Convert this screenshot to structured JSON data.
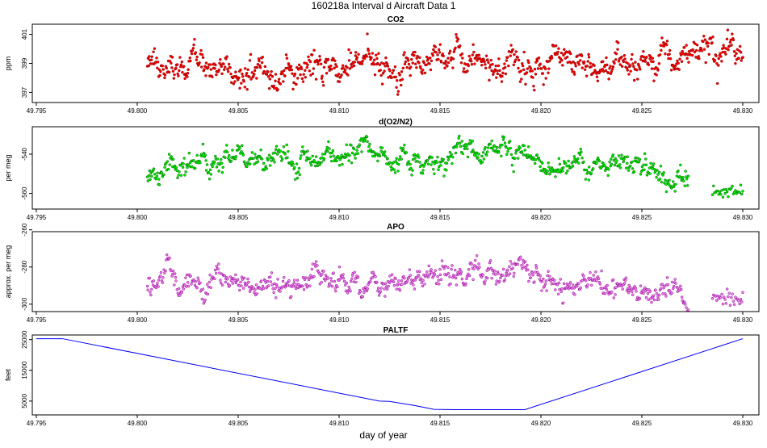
{
  "figure": {
    "title": "160218a   Interval d Aircraft Data 1",
    "xlabel": "day of year"
  },
  "chart_data": [
    {
      "type": "scatter",
      "title": "CO2",
      "ylabel": "ppm",
      "xlim": [
        49.7948,
        49.8308
      ],
      "ylim": [
        396.3,
        401.7
      ],
      "xticks": [
        49.795,
        49.8,
        49.805,
        49.81,
        49.815,
        49.82,
        49.825,
        49.83
      ],
      "xtick_labels": [
        "49.795",
        "49.800",
        "49.805",
        "49.810",
        "49.815",
        "49.820",
        "49.825",
        "49.830"
      ],
      "yticks": [
        397,
        399,
        401
      ],
      "ytick_labels": [
        "397",
        "399",
        "401"
      ],
      "color": "#ff0000",
      "edge_color": "#8b0000",
      "trend": {
        "x": [
          49.8005,
          49.802,
          49.805,
          49.81,
          49.815,
          49.82,
          49.823,
          49.825,
          49.827,
          49.829,
          49.83
        ],
        "y": [
          399.1,
          398.8,
          398.6,
          398.8,
          399.0,
          398.9,
          398.8,
          399.0,
          399.4,
          399.8,
          400.1
        ]
      },
      "x_range": [
        49.8005,
        49.83
      ],
      "noise": 0.55,
      "n_points": 900
    },
    {
      "type": "scatter",
      "title": "d(O2/N2)",
      "ylabel": "per meg",
      "xlim": [
        49.7948,
        49.8308
      ],
      "ylim": [
        -568,
        -526
      ],
      "xticks": [
        49.795,
        49.8,
        49.805,
        49.81,
        49.815,
        49.82,
        49.825,
        49.83
      ],
      "xtick_labels": [
        "49.795",
        "49.800",
        "49.805",
        "49.810",
        "49.815",
        "49.820",
        "49.825",
        "49.830"
      ],
      "yticks": [
        -540,
        -560
      ],
      "ytick_labels": [
        "-540",
        "-560"
      ],
      "color": "#00ee00",
      "edge_color": "#006400",
      "trend": {
        "x": [
          49.8005,
          49.801,
          49.803,
          49.805,
          49.81,
          49.814,
          49.8165,
          49.819,
          49.8205,
          49.822,
          49.825,
          49.826,
          49.827
        ],
        "y": [
          -555,
          -549,
          -544,
          -543,
          -541,
          -543,
          -539,
          -537,
          -545,
          -543,
          -545,
          -552,
          -553
        ]
      },
      "x_range": [
        49.8005,
        49.8273
      ],
      "gap_segment": {
        "x": [
          49.8285,
          49.83
        ],
        "y": [
          -559,
          -559.5
        ],
        "n_points": 30
      },
      "noise": 3.0,
      "n_points": 750
    },
    {
      "type": "scatter",
      "title": "APO",
      "ylabel": "approx. per meg",
      "xlim": [
        49.7948,
        49.8308
      ],
      "ylim": [
        -304,
        -261
      ],
      "xticks": [
        49.795,
        49.8,
        49.805,
        49.81,
        49.815,
        49.82,
        49.825,
        49.83
      ],
      "xtick_labels": [
        "49.795",
        "49.800",
        "49.805",
        "49.810",
        "49.815",
        "49.820",
        "49.825",
        "49.830"
      ],
      "yticks": [
        -260,
        -280,
        -300
      ],
      "ytick_labels": [
        "-260",
        "-280",
        "-300"
      ],
      "color": "#ee82ee",
      "edge_color": "#8b008b",
      "trend": {
        "x": [
          49.8005,
          49.803,
          49.806,
          49.81,
          49.812,
          49.815,
          49.8165,
          49.819,
          49.8205,
          49.823,
          49.8273
        ],
        "y": [
          -291,
          -288,
          -290,
          -288,
          -289,
          -284,
          -283,
          -281,
          -289,
          -290,
          -295
        ]
      },
      "x_range": [
        49.8005,
        49.8273
      ],
      "gap_segment": {
        "x": [
          49.8285,
          49.83
        ],
        "y": [
          -296,
          -298
        ],
        "n_points": 30
      },
      "noise": 3.4,
      "n_points": 750
    },
    {
      "type": "line",
      "title": "PALTF",
      "ylabel": "feet",
      "xlim": [
        49.7948,
        49.8308
      ],
      "ylim": [
        500,
        26500
      ],
      "xticks": [
        49.795,
        49.8,
        49.805,
        49.81,
        49.815,
        49.82,
        49.825,
        49.83
      ],
      "xtick_labels": [
        "49.795",
        "49.800",
        "49.805",
        "49.810",
        "49.815",
        "49.820",
        "49.825",
        "49.830"
      ],
      "yticks": [
        5000,
        15000,
        25000
      ],
      "ytick_labels": [
        "5000",
        "15000",
        "25000"
      ],
      "color": "#0000ff",
      "x": [
        49.795,
        49.7963,
        49.812,
        49.8125,
        49.8138,
        49.8147,
        49.8157,
        49.8192,
        49.83
      ],
      "y": [
        25300,
        25300,
        5000,
        4900,
        3500,
        2300,
        2200,
        2200,
        25300
      ]
    }
  ]
}
